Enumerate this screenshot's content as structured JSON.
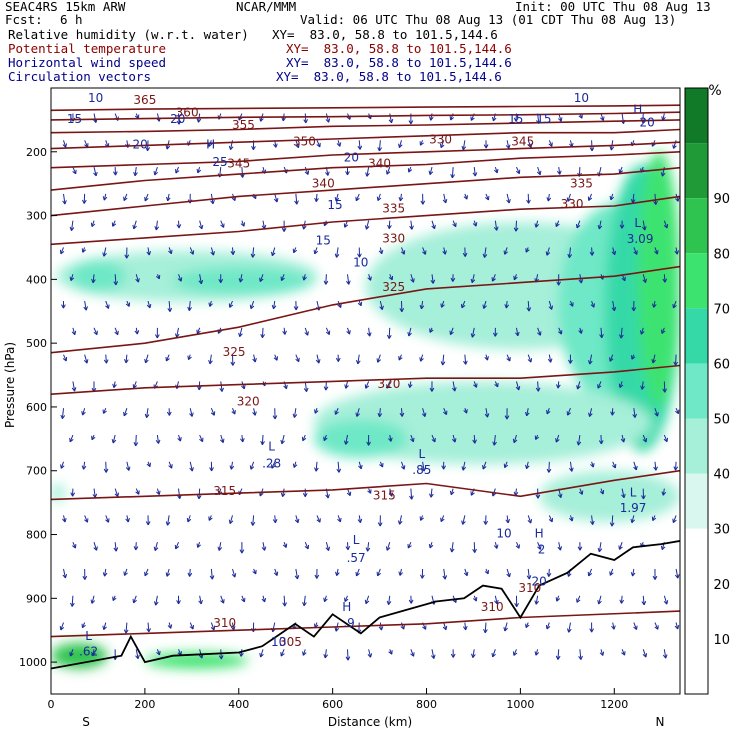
{
  "header": {
    "model": "SEAC4RS 15km ARW",
    "org": "NCAR/MMM",
    "init": "Init: 00 UTC Thu 08 Aug 13",
    "fcst_label": "Fcst:",
    "fcst_value": "6 h",
    "valid": "Valid: 06 UTC Thu 08 Aug 13 (01 CDT Thu 08 Aug 13)"
  },
  "legend": [
    {
      "name": "Relative humidity (w.r.t. water)",
      "xy": "XY=  83.0, 58.8 to 101.5,144.6",
      "color": "#000000"
    },
    {
      "name": "Potential temperature",
      "xy": "XY=  83.0, 58.8 to 101.5,144.6",
      "color": "#8b0000"
    },
    {
      "name": "Horizontal wind speed",
      "xy": "XY=  83.0, 58.8 to 101.5,144.6",
      "color": "#00008b"
    },
    {
      "name": "Circulation vectors",
      "xy": "XY=  83.0, 58.8 to 101.5,144.6",
      "color": "#00008b"
    }
  ],
  "chart_data": {
    "type": "heatmap",
    "xlabel": "Distance (km)",
    "ylabel": "Pressure (hPa)",
    "xlim": [
      0,
      1340
    ],
    "ylim": [
      1050,
      100
    ],
    "y_scale": "linear, inverted",
    "x_ticks": [
      0,
      200,
      400,
      600,
      800,
      1000,
      1200
    ],
    "y_ticks": [
      200,
      300,
      400,
      500,
      600,
      700,
      800,
      900,
      1000
    ],
    "x_end_labels": {
      "left": "S",
      "right": "N"
    },
    "colorbar": {
      "unit": "%",
      "ticks": [
        10,
        20,
        30,
        40,
        50,
        60,
        70,
        80,
        90
      ],
      "colors": [
        "#ffffff",
        "#ffffff",
        "#ffffff",
        "#d9f7ef",
        "#a6efd9",
        "#6ee8c6",
        "#35d9a8",
        "#3de36f",
        "#2ec44f",
        "#1f9a37",
        "#117a28"
      ]
    },
    "theta_contours": [
      {
        "value": 310,
        "x": [
          0,
          200,
          400,
          600,
          800,
          1000,
          1340
        ],
        "p": [
          960,
          955,
          950,
          945,
          940,
          930,
          920
        ]
      },
      {
        "value": 315,
        "x": [
          0,
          200,
          400,
          600,
          800,
          1000,
          1200,
          1340
        ],
        "p": [
          745,
          740,
          735,
          730,
          720,
          740,
          715,
          700
        ]
      },
      {
        "value": 320,
        "x": [
          0,
          200,
          400,
          600,
          800,
          1000,
          1200,
          1340
        ],
        "p": [
          580,
          570,
          565,
          560,
          555,
          555,
          545,
          535
        ]
      },
      {
        "value": 325,
        "x": [
          0,
          200,
          400,
          600,
          800,
          1000,
          1200,
          1340
        ],
        "p": [
          515,
          500,
          475,
          440,
          415,
          405,
          395,
          380
        ]
      },
      {
        "value": 330,
        "x": [
          0,
          200,
          400,
          600,
          800,
          1000,
          1200,
          1340
        ],
        "p": [
          345,
          335,
          325,
          310,
          300,
          290,
          285,
          270
        ]
      },
      {
        "value": 335,
        "x": [
          0,
          200,
          400,
          600,
          800,
          1000,
          1200,
          1340
        ],
        "p": [
          300,
          285,
          270,
          260,
          250,
          240,
          235,
          225
        ]
      },
      {
        "value": 340,
        "x": [
          0,
          200,
          400,
          600,
          800,
          1000,
          1200,
          1340
        ],
        "p": [
          260,
          245,
          235,
          225,
          220,
          210,
          205,
          200
        ]
      },
      {
        "value": 345,
        "x": [
          0,
          200,
          400,
          600,
          800,
          1000,
          1200,
          1340
        ],
        "p": [
          225,
          220,
          215,
          205,
          200,
          195,
          190,
          185
        ]
      },
      {
        "value": 350,
        "x": [
          0,
          200,
          400,
          600,
          800,
          1000,
          1200,
          1340
        ],
        "p": [
          195,
          190,
          185,
          180,
          175,
          170,
          170,
          165
        ]
      },
      {
        "value": 355,
        "x": [
          0,
          200,
          400,
          600,
          800,
          1000,
          1200,
          1340
        ],
        "p": [
          170,
          168,
          165,
          160,
          158,
          155,
          152,
          150
        ]
      },
      {
        "value": 360,
        "x": [
          0,
          200,
          400,
          600,
          800,
          1000,
          1200,
          1340
        ],
        "p": [
          150,
          148,
          146,
          145,
          143,
          142,
          140,
          138
        ]
      },
      {
        "value": 365,
        "x": [
          0,
          200,
          400,
          600,
          800,
          1000,
          1200,
          1340
        ],
        "p": [
          135,
          133,
          132,
          131,
          130,
          129,
          128,
          127
        ]
      }
    ],
    "theta_labels": [
      {
        "text": "310",
        "x": 370,
        "p": 945
      },
      {
        "text": "310",
        "x": 940,
        "p": 920
      },
      {
        "text": "310",
        "x": 1020,
        "p": 890
      },
      {
        "text": "305",
        "x": 510,
        "p": 975
      },
      {
        "text": "315",
        "x": 370,
        "p": 738
      },
      {
        "text": "315",
        "x": 710,
        "p": 745
      },
      {
        "text": "320",
        "x": 420,
        "p": 598
      },
      {
        "text": "320",
        "x": 720,
        "p": 570
      },
      {
        "text": "325",
        "x": 390,
        "p": 520
      },
      {
        "text": "325",
        "x": 730,
        "p": 418
      },
      {
        "text": "330",
        "x": 730,
        "p": 342
      },
      {
        "text": "330",
        "x": 1110,
        "p": 288
      },
      {
        "text": "335",
        "x": 730,
        "p": 295
      },
      {
        "text": "335",
        "x": 1130,
        "p": 256
      },
      {
        "text": "340",
        "x": 580,
        "p": 256
      },
      {
        "text": "340",
        "x": 700,
        "p": 225
      },
      {
        "text": "345",
        "x": 400,
        "p": 225
      },
      {
        "text": "345",
        "x": 1005,
        "p": 190
      },
      {
        "text": "350",
        "x": 540,
        "p": 190
      },
      {
        "text": "330",
        "x": 830,
        "p": 187
      },
      {
        "text": "355",
        "x": 410,
        "p": 164
      },
      {
        "text": "360",
        "x": 290,
        "p": 145
      },
      {
        "text": "365",
        "x": 200,
        "p": 125
      }
    ],
    "wind_labels": [
      {
        "text": "10",
        "x": 95,
        "p": 122
      },
      {
        "text": "15",
        "x": 50,
        "p": 155
      },
      {
        "text": "20",
        "x": 270,
        "p": 155
      },
      {
        "text": "20",
        "x": 190,
        "p": 195
      },
      {
        "text": "25",
        "x": 360,
        "p": 222
      },
      {
        "text": "20",
        "x": 640,
        "p": 215
      },
      {
        "text": "15",
        "x": 605,
        "p": 290
      },
      {
        "text": "15",
        "x": 580,
        "p": 345
      },
      {
        "text": "10",
        "x": 660,
        "p": 380
      },
      {
        "text": "10",
        "x": 485,
        "p": 975
      },
      {
        "text": "10",
        "x": 965,
        "p": 805
      },
      {
        "text": "15",
        "x": 1050,
        "p": 155
      },
      {
        "text": "15",
        "x": 990,
        "p": 155
      },
      {
        "text": "10",
        "x": 1130,
        "p": 122
      }
    ],
    "extrema": [
      {
        "text": "L",
        "x": 470,
        "p": 668
      },
      {
        "text": ".28",
        "x": 470,
        "p": 695
      },
      {
        "text": "L",
        "x": 790,
        "p": 680
      },
      {
        "text": ".85",
        "x": 790,
        "p": 705
      },
      {
        "text": "L",
        "x": 650,
        "p": 815
      },
      {
        "text": ".57",
        "x": 650,
        "p": 843
      },
      {
        "text": "H",
        "x": 630,
        "p": 920
      },
      {
        "text": ".9",
        "x": 635,
        "p": 945
      },
      {
        "text": "L",
        "x": 1240,
        "p": 740
      },
      {
        "text": "1.97",
        "x": 1240,
        "p": 765
      },
      {
        "text": "L",
        "x": 1250,
        "p": 318
      },
      {
        "text": "3.09",
        "x": 1255,
        "p": 343
      },
      {
        "text": "L",
        "x": 80,
        "p": 965
      },
      {
        "text": ".62",
        "x": 80,
        "p": 990
      },
      {
        "text": "H",
        "x": 1040,
        "p": 805
      },
      {
        "text": "2",
        "x": 1045,
        "p": 830
      },
      {
        "text": "H",
        "x": 1250,
        "p": 140
      },
      {
        "text": "20",
        "x": 1270,
        "p": 160
      },
      {
        "text": "H",
        "x": 340,
        "p": 195
      },
      {
        "text": "20",
        "x": 1040,
        "p": 880
      }
    ],
    "rh_blobs": [
      {
        "x": 10,
        "p": 355,
        "w": 560,
        "h": 80,
        "level": 4
      },
      {
        "x": 40,
        "p": 370,
        "w": 120,
        "h": 50,
        "level": 5
      },
      {
        "x": 260,
        "p": 380,
        "w": 300,
        "h": 45,
        "level": 5
      },
      {
        "x": 670,
        "p": 310,
        "w": 660,
        "h": 200,
        "level": 4
      },
      {
        "x": 1080,
        "p": 280,
        "w": 260,
        "h": 320,
        "level": 5
      },
      {
        "x": 1180,
        "p": 220,
        "w": 160,
        "h": 450,
        "level": 6
      },
      {
        "x": 1250,
        "p": 200,
        "w": 90,
        "h": 400,
        "level": 7
      },
      {
        "x": 560,
        "p": 560,
        "w": 720,
        "h": 130,
        "level": 4
      },
      {
        "x": 560,
        "p": 620,
        "w": 200,
        "h": 60,
        "level": 5
      },
      {
        "x": 1040,
        "p": 700,
        "w": 300,
        "h": 80,
        "level": 4
      },
      {
        "x": 0,
        "p": 970,
        "w": 120,
        "h": 40,
        "level": 8
      },
      {
        "x": 200,
        "p": 985,
        "w": 220,
        "h": 25,
        "level": 7
      },
      {
        "x": 0,
        "p": 720,
        "w": 30,
        "h": 30,
        "level": 4
      }
    ]
  }
}
